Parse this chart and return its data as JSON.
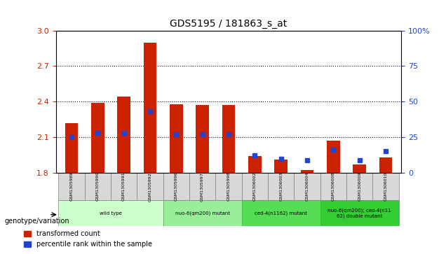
{
  "title": "GDS5195 / 181863_s_at",
  "samples": [
    "GSM1305989",
    "GSM1305990",
    "GSM1305991",
    "GSM1305992",
    "GSM1305996",
    "GSM1305997",
    "GSM1305998",
    "GSM1306002",
    "GSM1306003",
    "GSM1306004",
    "GSM1306008",
    "GSM1306009",
    "GSM1306010"
  ],
  "red_values": [
    2.22,
    2.39,
    2.44,
    2.9,
    2.38,
    2.37,
    2.37,
    1.94,
    1.91,
    1.82,
    2.07,
    1.87,
    1.93
  ],
  "blue_values": [
    0.25,
    0.28,
    0.28,
    0.43,
    0.27,
    0.27,
    0.27,
    0.12,
    0.1,
    0.09,
    0.16,
    0.09,
    0.15
  ],
  "ymin": 1.8,
  "ymax": 3.0,
  "yticks_left": [
    1.8,
    2.1,
    2.4,
    2.7,
    3.0
  ],
  "yticks_right": [
    0,
    25,
    50,
    75,
    100
  ],
  "groups": [
    {
      "label": "wild type",
      "start": 0,
      "end": 3,
      "color": "#ccffcc"
    },
    {
      "label": "nuo-6(qm200) mutant",
      "start": 4,
      "end": 6,
      "color": "#99ee99"
    },
    {
      "label": "ced-4(n1162) mutant",
      "start": 7,
      "end": 9,
      "color": "#55dd55"
    },
    {
      "label": "nuo-6(qm200); ced-4(n11\n62) double mutant",
      "start": 10,
      "end": 12,
      "color": "#33cc33"
    }
  ],
  "bar_color": "#cc2200",
  "blue_color": "#2244cc",
  "bg_color": "#f0f0f0",
  "grid_color": "#000000",
  "legend_red": "transformed count",
  "legend_blue": "percentile rank within the sample",
  "left_axis_color": "#cc2200",
  "right_axis_color": "#2244cc"
}
